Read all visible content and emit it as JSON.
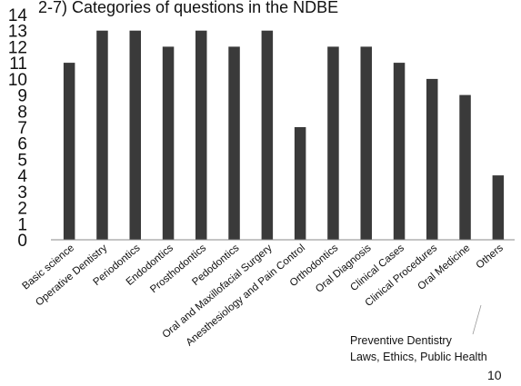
{
  "chart_data": {
    "type": "bar",
    "title": "2-7) Categories  of questions in the NDBE",
    "categories": [
      "Basic science",
      "Operative Dentistry",
      "Periodontics",
      "Endodontics",
      "Prosthodontics",
      "Pedodontics",
      "Oral and Maxillofacial Surgery",
      "Anesthesiology and Pain Control",
      "Orthodontics",
      "Oral Diagnosis",
      "Clinical Cases",
      "Clinical Procedures",
      "Oral Medicine",
      "Others"
    ],
    "values": [
      11,
      13,
      13,
      12,
      13,
      12,
      13,
      7,
      12,
      12,
      11,
      10,
      9,
      4
    ],
    "ylim": [
      0,
      14
    ],
    "yticks": [
      "0",
      "1",
      "2",
      "3",
      "4",
      "5",
      "6",
      "7",
      "8",
      "9",
      "10",
      "11",
      "12",
      "13",
      "14"
    ],
    "grid": false,
    "bar_color": "#3a3a3a",
    "annotation": [
      "Preventive Dentistry",
      "Laws, Ethics, Public Health"
    ]
  },
  "page_number": "10"
}
